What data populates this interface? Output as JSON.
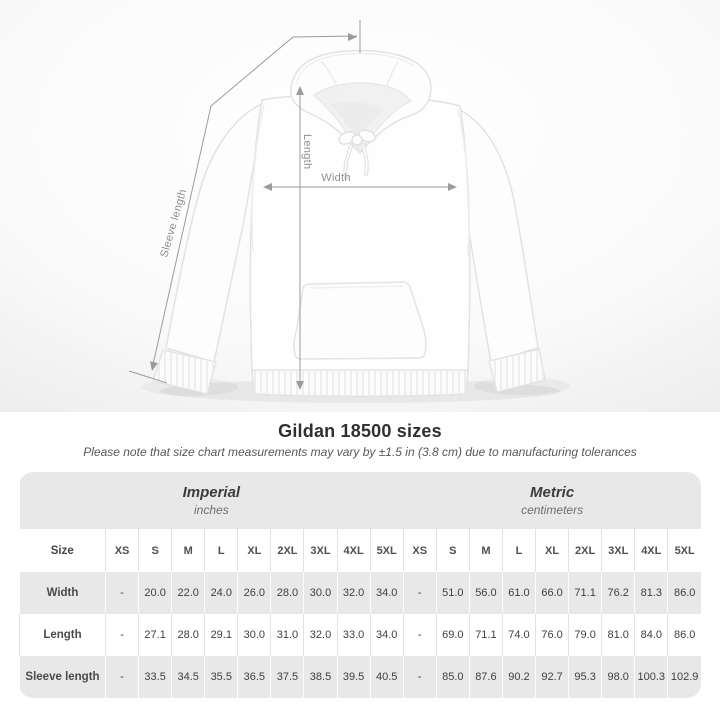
{
  "title": "Gildan 18500 sizes",
  "note": "Please note that size chart measurements may vary by ±1.5 in (3.8 cm) due to manufacturing tolerances",
  "diagram": {
    "length_label": "Length",
    "width_label": "Width",
    "sleeve_label": "Sleeve length"
  },
  "table": {
    "size_header": "Size",
    "groups": [
      {
        "title": "Imperial",
        "subtitle": "inches"
      },
      {
        "title": "Metric",
        "subtitle": "centimeters"
      }
    ],
    "sizes": [
      "XS",
      "S",
      "M",
      "L",
      "XL",
      "2XL",
      "3XL",
      "4XL",
      "5XL"
    ],
    "rows": [
      {
        "label": "Width",
        "imperial": [
          "-",
          "20.0",
          "22.0",
          "24.0",
          "26.0",
          "28.0",
          "30.0",
          "32.0",
          "34.0"
        ],
        "metric": [
          "-",
          "51.0",
          "56.0",
          "61.0",
          "66.0",
          "71.1",
          "76.2",
          "81.3",
          "86.0"
        ]
      },
      {
        "label": "Length",
        "imperial": [
          "-",
          "27.1",
          "28.0",
          "29.1",
          "30.0",
          "31.0",
          "32.0",
          "33.0",
          "34.0"
        ],
        "metric": [
          "-",
          "69.0",
          "71.1",
          "74.0",
          "76.0",
          "79.0",
          "81.0",
          "84.0",
          "86.0"
        ]
      },
      {
        "label": "Sleeve length",
        "imperial": [
          "-",
          "33.5",
          "34.5",
          "35.5",
          "36.5",
          "37.5",
          "38.5",
          "39.5",
          "40.5"
        ],
        "metric": [
          "-",
          "85.0",
          "87.6",
          "90.2",
          "92.7",
          "95.3",
          "98.0",
          "100.3",
          "102.9"
        ]
      }
    ]
  },
  "colors": {
    "table_band": "#e8e8e8",
    "value_text": "#3f3f3f",
    "measure_line": "#9b9b9b",
    "measure_label": "#8f8f8f"
  }
}
